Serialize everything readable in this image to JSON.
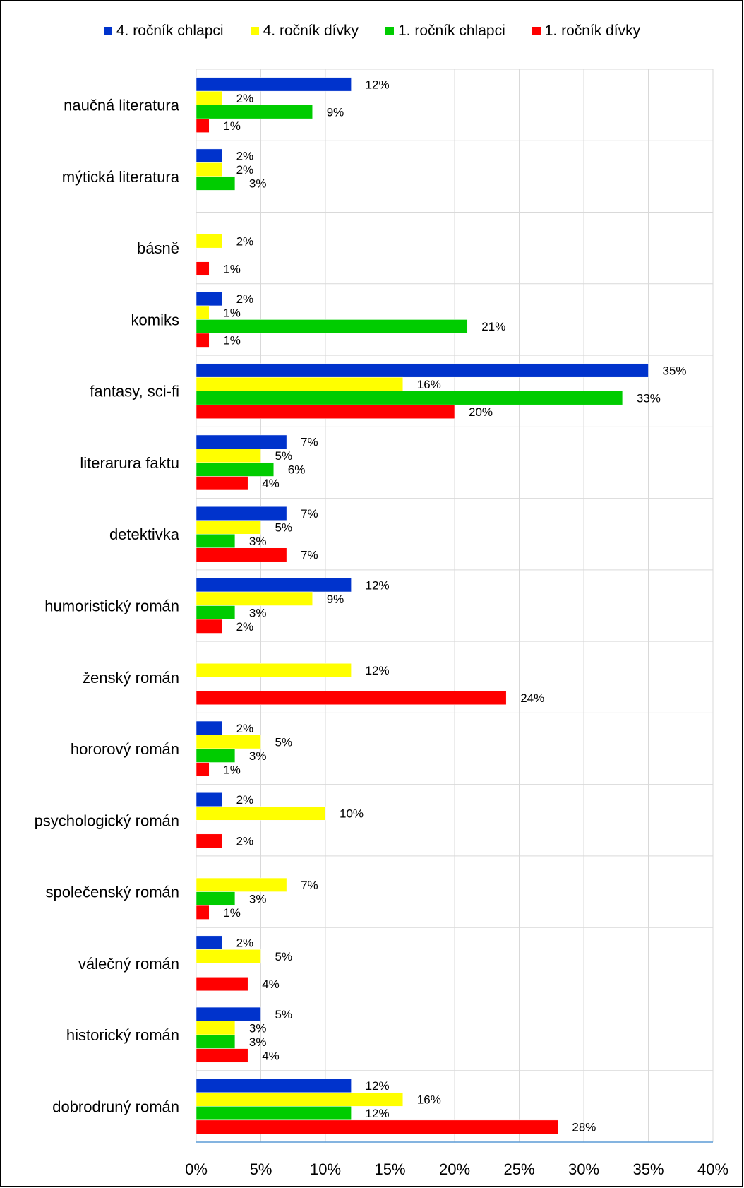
{
  "chart_data": {
    "type": "bar",
    "orientation": "horizontal",
    "title": "",
    "xlabel": "",
    "ylabel": "",
    "xlim": [
      0,
      40
    ],
    "x_ticks": [
      "0%",
      "5%",
      "10%",
      "15%",
      "20%",
      "25%",
      "30%",
      "35%",
      "40%"
    ],
    "grid": "vertical",
    "legend_position": "top",
    "categories": [
      "naučná literatura",
      "mýtická literatura",
      "básně",
      "komiks",
      "fantasy, sci-fi",
      "literarura faktu",
      "detektivka",
      "humoristický román",
      "ženský román",
      "hororový román",
      "psychologický román",
      "společenský román",
      "válečný román",
      "historický román",
      "dobrodruný román"
    ],
    "series": [
      {
        "name": "4. ročník chlapci",
        "color": "#0033cc",
        "values": [
          12,
          2,
          null,
          2,
          35,
          7,
          7,
          12,
          null,
          2,
          2,
          null,
          2,
          5,
          12
        ],
        "labels": [
          "12%",
          "2%",
          null,
          "2%",
          "35%",
          "7%",
          "7%",
          "12%",
          null,
          "2%",
          "2%",
          null,
          "2%",
          "5%",
          "12%"
        ]
      },
      {
        "name": "4. ročník dívky",
        "color": "#ffff00",
        "values": [
          2,
          2,
          2,
          1,
          16,
          5,
          5,
          9,
          12,
          5,
          10,
          7,
          5,
          3,
          16
        ],
        "labels": [
          "2%",
          "2%",
          "2%",
          "1%",
          "16%",
          "5%",
          "5%",
          "9%",
          "12%",
          "5%",
          "10%",
          "7%",
          "5%",
          "3%",
          "16%"
        ]
      },
      {
        "name": "1. ročník chlapci",
        "color": "#00cc00",
        "values": [
          9,
          3,
          null,
          21,
          33,
          6,
          3,
          3,
          null,
          3,
          null,
          3,
          null,
          3,
          12
        ],
        "labels": [
          "9%",
          "3%",
          null,
          "21%",
          "33%",
          "6%",
          "3%",
          "3%",
          null,
          "3%",
          null,
          "3%",
          null,
          "3%",
          "12%"
        ]
      },
      {
        "name": "1. ročník dívky",
        "color": "#ff0000",
        "values": [
          1,
          null,
          1,
          1,
          20,
          4,
          7,
          2,
          24,
          1,
          2,
          1,
          4,
          4,
          28
        ],
        "labels": [
          "1%",
          null,
          "1%",
          "1%",
          "20%",
          "4%",
          "7%",
          "2%",
          "24%",
          "1%",
          "2%",
          "1%",
          "4%",
          "4%",
          "28%"
        ]
      }
    ]
  }
}
